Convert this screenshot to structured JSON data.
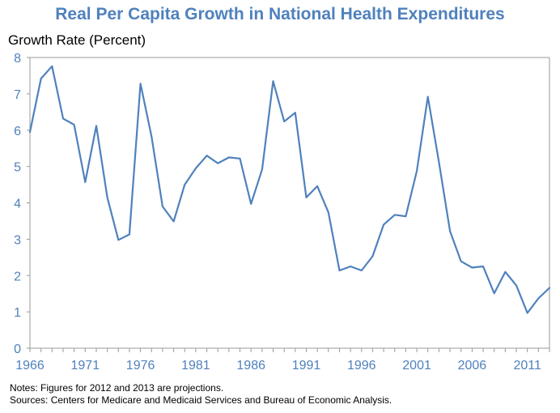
{
  "title": "Real Per Capita Growth in National Health Expenditures",
  "ylabel": "Growth Rate (Percent)",
  "notes": "Notes: Figures for 2012 and 2013 are projections.",
  "sources": "Sources: Centers for Medicare and Medicaid Services and Bureau of Economic Analysis.",
  "colors": {
    "line": "#4F81BD",
    "axis_text": "#4F81BD",
    "title": "#4F81BD"
  },
  "chart_data": {
    "type": "line",
    "title": "Real Per Capita Growth in National Health Expenditures",
    "ylabel": "Growth Rate (Percent)",
    "xlabel": "",
    "xlim": [
      1966,
      2013
    ],
    "ylim": [
      0,
      8
    ],
    "yticks": [
      "0",
      "1",
      "2",
      "3",
      "4",
      "5",
      "6",
      "7",
      "8"
    ],
    "xticks": [
      "1966",
      "1971",
      "1976",
      "1981",
      "1986",
      "1991",
      "1996",
      "2001",
      "2006",
      "2011"
    ],
    "grid": false,
    "x": [
      1966,
      1967,
      1968,
      1969,
      1970,
      1971,
      1972,
      1973,
      1974,
      1975,
      1976,
      1977,
      1978,
      1979,
      1980,
      1981,
      1982,
      1983,
      1984,
      1985,
      1986,
      1987,
      1988,
      1989,
      1990,
      1991,
      1992,
      1993,
      1994,
      1995,
      1996,
      1997,
      1998,
      1999,
      2000,
      2001,
      2002,
      2003,
      2004,
      2005,
      2006,
      2007,
      2008,
      2009,
      2010,
      2011,
      2012,
      2013
    ],
    "series": [
      {
        "values": [
          5.95,
          7.42,
          7.76,
          6.32,
          6.15,
          4.57,
          6.12,
          4.15,
          2.98,
          3.13,
          7.28,
          5.82,
          3.9,
          3.49,
          4.5,
          4.95,
          5.3,
          5.09,
          5.25,
          5.22,
          3.97,
          4.92,
          7.35,
          6.24,
          6.48,
          4.15,
          4.46,
          3.74,
          2.14,
          2.25,
          2.14,
          2.53,
          3.4,
          3.67,
          3.63,
          4.88,
          6.92,
          5.12,
          3.22,
          2.39,
          2.22,
          2.25,
          1.51,
          2.1,
          1.73,
          0.97,
          1.37,
          1.66
        ]
      }
    ]
  }
}
